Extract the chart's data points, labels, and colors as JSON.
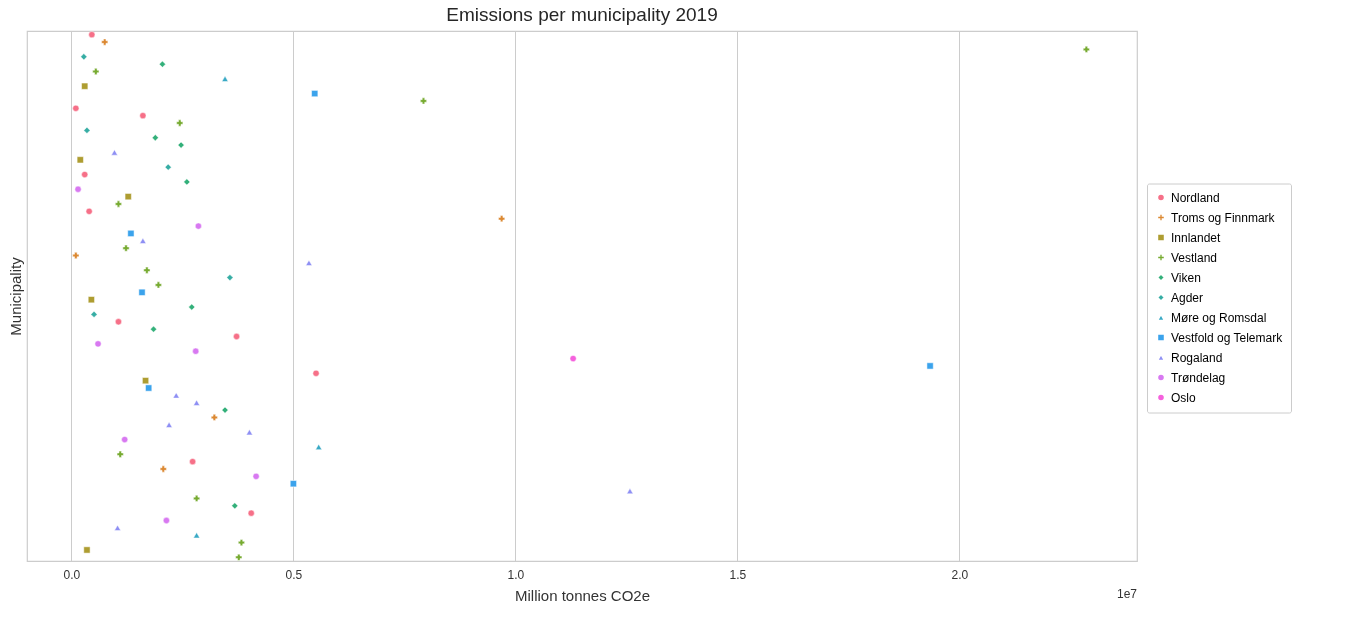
{
  "chart_data": {
    "type": "scatter",
    "title": "Emissions per municipality 2019",
    "xlabel": "Million tonnes CO2e",
    "ylabel": "Municipality",
    "orientation": "horizontal",
    "categories": [
      null,
      null,
      null,
      null,
      null,
      null,
      null,
      null,
      null,
      null,
      null,
      null,
      null,
      null,
      null,
      null,
      null,
      null,
      null,
      null,
      null,
      null,
      null,
      null,
      null,
      null,
      null,
      null,
      null,
      null,
      null,
      null,
      null,
      null,
      null,
      null,
      null,
      null,
      null,
      null,
      null,
      null,
      null,
      null,
      null,
      null,
      null,
      null,
      null,
      null,
      null,
      null,
      null,
      null,
      null,
      null,
      null,
      null,
      null,
      null,
      null,
      null,
      null,
      null,
      null,
      null,
      null,
      null,
      null,
      null,
      null,
      null
    ],
    "xlim": [
      -0.1,
      2.4
    ],
    "xticks": [
      {
        "value": 0,
        "label": "0.0"
      },
      0.5,
      {
        "value": 1,
        "label": "1.0"
      },
      1.5,
      {
        "value": 2,
        "label": "2.0"
      }
    ],
    "annotations": [
      "1e7"
    ],
    "grid": "x",
    "legend": "right",
    "tick_labels": "x",
    "series": [
      {
        "name": "Nordland",
        "color": "#f67088",
        "marker": "circle",
        "values": [
          0.046,
          null,
          null,
          null,
          null,
          null,
          null,
          null,
          null,
          null,
          0.01,
          0.161,
          null,
          null,
          null,
          null,
          null,
          null,
          null,
          0.03,
          null,
          null,
          null,
          null,
          0.04,
          null,
          null,
          null,
          null,
          null,
          null,
          null,
          null,
          null,
          null,
          null,
          null,
          null,
          null,
          0.106,
          null,
          0.372,
          null,
          null,
          null,
          null,
          0.551,
          null,
          null,
          null,
          null,
          null,
          null,
          null,
          null,
          null,
          null,
          null,
          0.273,
          null,
          null,
          null,
          null,
          null,
          null,
          0.405,
          null,
          null,
          null,
          null,
          null,
          null
        ]
      },
      {
        "name": "Troms og Finnmark",
        "color": "#dc8932",
        "marker": "cross",
        "values": [
          null,
          0.075,
          null,
          null,
          null,
          null,
          null,
          null,
          null,
          null,
          null,
          null,
          null,
          null,
          null,
          null,
          null,
          null,
          null,
          null,
          null,
          null,
          null,
          null,
          null,
          0.969,
          null,
          null,
          null,
          null,
          0.01,
          null,
          null,
          null,
          null,
          null,
          null,
          null,
          null,
          null,
          null,
          null,
          null,
          null,
          null,
          null,
          null,
          null,
          null,
          null,
          null,
          null,
          0.322,
          null,
          null,
          null,
          null,
          null,
          null,
          0.207,
          null,
          null,
          null,
          null,
          null,
          null,
          null,
          null,
          null,
          null,
          null,
          null
        ]
      },
      {
        "name": "Innlandet",
        "color": "#ae9d31",
        "marker": "square",
        "values": [
          null,
          null,
          null,
          null,
          null,
          null,
          null,
          0.03,
          null,
          null,
          null,
          null,
          null,
          null,
          null,
          null,
          null,
          0.02,
          null,
          null,
          null,
          null,
          0.128,
          null,
          null,
          null,
          null,
          null,
          null,
          null,
          null,
          null,
          null,
          null,
          null,
          null,
          0.045,
          null,
          null,
          null,
          null,
          null,
          null,
          null,
          null,
          null,
          null,
          0.167,
          null,
          null,
          null,
          null,
          null,
          null,
          null,
          null,
          null,
          null,
          null,
          null,
          null,
          null,
          null,
          null,
          null,
          null,
          null,
          null,
          null,
          null,
          0.035,
          null
        ]
      },
      {
        "name": "Vestland",
        "color": "#77ab31",
        "marker": "cross",
        "values": [
          null,
          null,
          2.286,
          null,
          null,
          0.055,
          null,
          null,
          null,
          0.793,
          null,
          null,
          0.244,
          null,
          null,
          null,
          null,
          null,
          null,
          null,
          null,
          null,
          null,
          0.106,
          null,
          null,
          null,
          null,
          null,
          0.123,
          null,
          null,
          0.17,
          null,
          0.196,
          null,
          null,
          null,
          null,
          null,
          null,
          null,
          null,
          null,
          null,
          null,
          null,
          null,
          null,
          null,
          null,
          null,
          null,
          null,
          null,
          null,
          null,
          0.11,
          null,
          null,
          null,
          null,
          null,
          0.282,
          null,
          null,
          null,
          null,
          null,
          0.383,
          null,
          0.377
        ]
      },
      {
        "name": "Viken",
        "color": "#33b07a",
        "marker": "diamond",
        "values": [
          null,
          null,
          null,
          null,
          0.205,
          null,
          null,
          null,
          null,
          null,
          null,
          null,
          null,
          null,
          0.189,
          0.247,
          null,
          null,
          null,
          null,
          0.26,
          null,
          null,
          null,
          null,
          null,
          null,
          null,
          null,
          null,
          null,
          null,
          null,
          null,
          null,
          null,
          null,
          0.271,
          null,
          null,
          0.185,
          null,
          null,
          null,
          null,
          null,
          null,
          null,
          null,
          null,
          null,
          0.346,
          null,
          null,
          null,
          null,
          null,
          null,
          null,
          null,
          null,
          null,
          null,
          null,
          0.368,
          null,
          null,
          null,
          null,
          null,
          null,
          null
        ]
      },
      {
        "name": "Agder",
        "color": "#36ada4",
        "marker": "diamond",
        "values": [
          null,
          null,
          null,
          0.028,
          null,
          null,
          null,
          null,
          null,
          null,
          null,
          null,
          null,
          0.035,
          null,
          null,
          null,
          null,
          0.218,
          null,
          null,
          null,
          null,
          null,
          null,
          null,
          null,
          null,
          null,
          null,
          null,
          null,
          null,
          0.357,
          null,
          null,
          null,
          null,
          0.051,
          null,
          null,
          null,
          null,
          null,
          null,
          null,
          null,
          null,
          null,
          null,
          null,
          null,
          null,
          null,
          null,
          null,
          null,
          null,
          null,
          null,
          null,
          null,
          null,
          null,
          null,
          null,
          null,
          null,
          null,
          null,
          null,
          null
        ]
      },
      {
        "name": "Møre og Romsdal",
        "color": "#38a9c5",
        "marker": "triangle",
        "values": [
          null,
          null,
          null,
          null,
          null,
          null,
          0.346,
          null,
          null,
          null,
          null,
          null,
          null,
          null,
          null,
          null,
          null,
          null,
          null,
          null,
          null,
          null,
          null,
          null,
          null,
          null,
          null,
          null,
          null,
          null,
          null,
          null,
          null,
          null,
          null,
          null,
          null,
          null,
          null,
          null,
          null,
          null,
          null,
          null,
          null,
          null,
          null,
          null,
          null,
          null,
          null,
          null,
          null,
          null,
          null,
          null,
          0.557,
          null,
          null,
          null,
          null,
          null,
          null,
          null,
          null,
          null,
          null,
          null,
          0.282,
          null,
          null,
          null
        ]
      },
      {
        "name": "Vestfold og Telemark",
        "color": "#3ba3ec",
        "marker": "square",
        "values": [
          null,
          null,
          null,
          null,
          null,
          null,
          null,
          null,
          0.548,
          null,
          null,
          null,
          null,
          null,
          null,
          null,
          null,
          null,
          null,
          null,
          null,
          null,
          null,
          null,
          null,
          null,
          null,
          0.134,
          null,
          null,
          null,
          null,
          null,
          null,
          null,
          0.159,
          null,
          null,
          null,
          null,
          null,
          null,
          null,
          null,
          null,
          1.934,
          null,
          null,
          0.174,
          null,
          null,
          null,
          null,
          null,
          null,
          null,
          null,
          null,
          null,
          null,
          null,
          0.5,
          null,
          null,
          null,
          null,
          null,
          null,
          null,
          null,
          null,
          null
        ]
      },
      {
        "name": "Rogaland",
        "color": "#8e8ff4",
        "marker": "triangle",
        "values": [
          null,
          null,
          null,
          null,
          null,
          null,
          null,
          null,
          null,
          null,
          null,
          null,
          null,
          null,
          null,
          null,
          0.097,
          null,
          null,
          null,
          null,
          null,
          null,
          null,
          null,
          null,
          null,
          null,
          0.161,
          null,
          null,
          0.535,
          null,
          null,
          null,
          null,
          null,
          null,
          null,
          null,
          null,
          null,
          null,
          null,
          null,
          null,
          null,
          null,
          null,
          0.236,
          0.282,
          null,
          null,
          0.22,
          0.401,
          null,
          null,
          null,
          null,
          null,
          null,
          null,
          1.258,
          null,
          null,
          null,
          null,
          0.104,
          null,
          null,
          null,
          null
        ]
      },
      {
        "name": "Trøndelag",
        "color": "#d879f1",
        "marker": "circle",
        "values": [
          null,
          null,
          null,
          null,
          null,
          null,
          null,
          null,
          null,
          null,
          null,
          null,
          null,
          null,
          null,
          null,
          null,
          null,
          null,
          null,
          null,
          0.015,
          null,
          null,
          null,
          null,
          0.286,
          null,
          null,
          null,
          null,
          null,
          null,
          null,
          null,
          null,
          null,
          null,
          null,
          null,
          null,
          null,
          0.06,
          0.28,
          null,
          null,
          null,
          null,
          null,
          null,
          null,
          null,
          null,
          null,
          null,
          0.12,
          null,
          null,
          null,
          null,
          0.416,
          null,
          null,
          null,
          null,
          null,
          0.214,
          null,
          null,
          null,
          null,
          null
        ]
      },
      {
        "name": "Oslo",
        "color": "#f561dd",
        "marker": "circle",
        "values": [
          null,
          null,
          null,
          null,
          null,
          null,
          null,
          null,
          null,
          null,
          null,
          null,
          null,
          null,
          null,
          null,
          null,
          null,
          null,
          null,
          null,
          null,
          null,
          null,
          null,
          null,
          null,
          null,
          null,
          null,
          null,
          null,
          null,
          null,
          null,
          null,
          null,
          null,
          null,
          null,
          null,
          null,
          null,
          null,
          1.13,
          null,
          null,
          null,
          null,
          null,
          null,
          null,
          null,
          null,
          null,
          null,
          null,
          null,
          null,
          null,
          null,
          null,
          null,
          null,
          null,
          null,
          null,
          null,
          null,
          null,
          null,
          null
        ]
      }
    ]
  }
}
